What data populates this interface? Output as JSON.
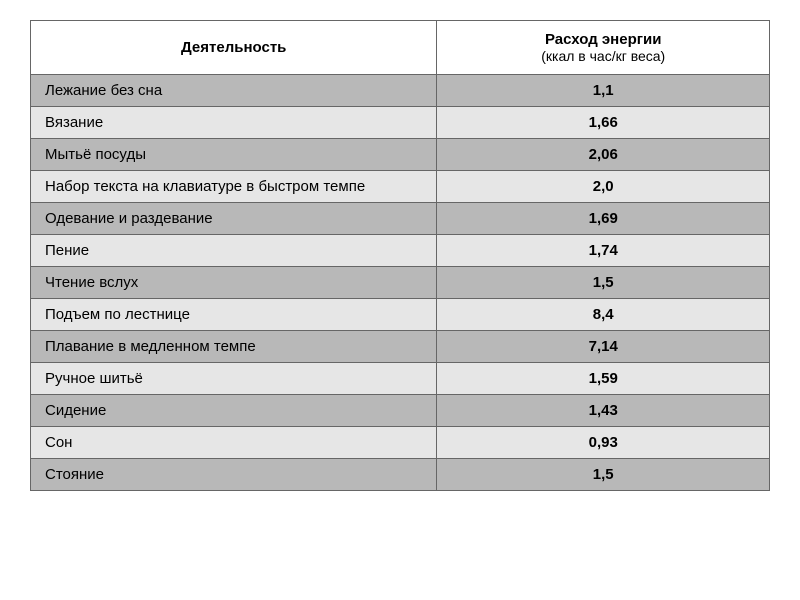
{
  "headers": {
    "activity": "Деятельность",
    "energy_title": "Расход энергии",
    "energy_sub": "(ккал в час/кг веса)"
  },
  "rows": [
    {
      "activity": "Лежание без сна",
      "value": "1,1",
      "shade": "dark"
    },
    {
      "activity": "Вязание",
      "value": "1,66",
      "shade": "light"
    },
    {
      "activity": "Мытьё посуды",
      "value": "2,06",
      "shade": "dark"
    },
    {
      "activity": "Набор текста на клавиатуре в быстром темпе",
      "value": "2,0",
      "shade": "light"
    },
    {
      "activity": "Одевание и раздевание",
      "value": "1,69",
      "shade": "dark"
    },
    {
      "activity": "Пение",
      "value": "1,74",
      "shade": "light"
    },
    {
      "activity": "Чтение вслух",
      "value": "1,5",
      "shade": "dark"
    },
    {
      "activity": "Подъем по лестнице",
      "value": "8,4",
      "shade": "light"
    },
    {
      "activity": "Плавание в медленном темпе",
      "value": "7,14",
      "shade": "dark"
    },
    {
      "activity": "Ручное шитьё",
      "value": "1,59",
      "shade": "light"
    },
    {
      "activity": "Сидение",
      "value": "1,43",
      "shade": "dark"
    },
    {
      "activity": "Сон",
      "value": "0,93",
      "shade": "light"
    },
    {
      "activity": "Стояние",
      "value": "1,5",
      "shade": "dark"
    }
  ],
  "style": {
    "dark_row_bg": "#b8b8b8",
    "light_row_bg": "#e6e6e6",
    "header_bg": "#ffffff",
    "border_color": "#666666",
    "font_family": "Arial",
    "activity_fontsize": 15,
    "value_fontweight": "bold"
  }
}
